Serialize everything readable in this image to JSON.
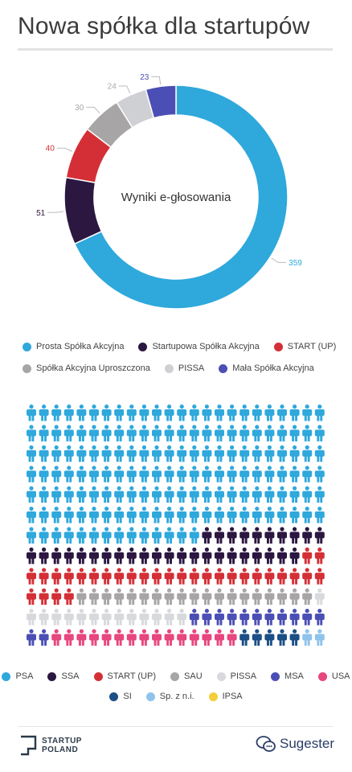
{
  "title": "Nowa spółka dla startupów",
  "chart_data": [
    {
      "type": "pie",
      "title": "Wyniki e-głosowania",
      "hole": true,
      "slices": [
        {
          "name": "Prosta Spółka Akcyjna",
          "value": 359,
          "color": "#2fa8dc"
        },
        {
          "name": "Startupowa Spółka Akcyjna",
          "value": 51,
          "color": "#2b1740"
        },
        {
          "name": "START (UP)",
          "value": 40,
          "color": "#d42f36"
        },
        {
          "name": "Spółka Akcyjna Uproszczona",
          "value": 30,
          "color": "#a8a5a6"
        },
        {
          "name": "PISSA",
          "value": 24,
          "color": "#cfd0d4"
        },
        {
          "name": "Mała Spółka Akcyjna",
          "value": 23,
          "color": "#4b4fb5"
        }
      ]
    },
    {
      "type": "pictogram",
      "icon": "person-icon",
      "columns": 24,
      "rows": 12,
      "categories": [
        {
          "name": "PSA",
          "count": 158,
          "color": "#2fa8dc"
        },
        {
          "name": "SSA",
          "count": 32,
          "color": "#2b1740"
        },
        {
          "name": "START (UP)",
          "count": 30,
          "color": "#d42f36"
        },
        {
          "name": "SAU",
          "count": 19,
          "color": "#a8a5a6"
        },
        {
          "name": "PISSA",
          "count": 14,
          "color": "#d8d9dc"
        },
        {
          "name": "MSA",
          "count": 13,
          "color": "#4b4fb5"
        },
        {
          "name": "USA",
          "count": 15,
          "color": "#e8467e"
        },
        {
          "name": "SI",
          "count": 5,
          "color": "#1b4f86"
        },
        {
          "name": "Sp. z n.i.",
          "count": 3,
          "color": "#8ec3ec"
        },
        {
          "name": "IPSA",
          "count": 2,
          "color": "#f3cf3a"
        }
      ]
    }
  ],
  "footer": {
    "startup_line1": "STARTUP",
    "startup_line2": "POLAND",
    "sugester_name": "Sugester"
  }
}
